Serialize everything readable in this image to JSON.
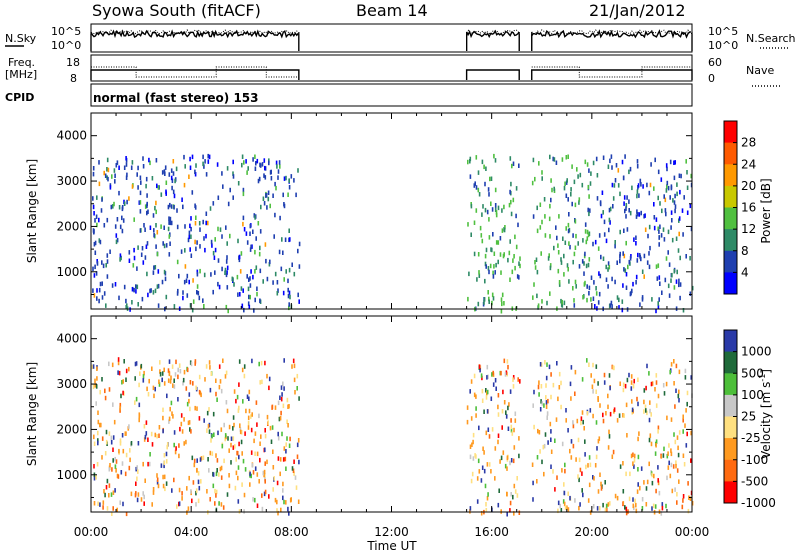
{
  "header": {
    "station": "Syowa South (fitACF)",
    "beam": "Beam 14",
    "date": "21/Jan/2012"
  },
  "panels": {
    "nsky_label": "N.Sky",
    "nsky_ticks": [
      "10^5",
      "10^0"
    ],
    "nsearch_label": "N.Search",
    "nsearch_ticks": [
      "10^5",
      "10^0"
    ],
    "freq_label": "Freq.",
    "freq_unit": "[MHz]",
    "freq_ticks": [
      "18",
      "8"
    ],
    "nave_label": "Nave",
    "nave_ticks": [
      "60",
      "0"
    ],
    "cpid_label": "CPID",
    "cpid_text": "normal (fast stereo) 153"
  },
  "colors": {
    "power": [
      "#0000ff",
      "#1f3fb0",
      "#2e8a66",
      "#50c040",
      "#c8c800",
      "#ff9900",
      "#ff5a00",
      "#ff0000"
    ],
    "velocity": [
      "#2a3aa8",
      "#1f6a3a",
      "#4dbf3a",
      "#c8c8c8",
      "#ffe080",
      "#ff9a20",
      "#ff6a10",
      "#ff0000"
    ]
  },
  "chart_data": [
    {
      "type": "heatmap",
      "name": "power",
      "x_range_hours": [
        0,
        24
      ],
      "x_tick_labels": [
        "00:00",
        "04:00",
        "08:00",
        "12:00",
        "16:00",
        "20:00",
        "00:00"
      ],
      "xlabel": "Time UT",
      "ylabel": "Slant Range [km]",
      "ylim": [
        180,
        4500
      ],
      "y_ticks": [
        1000,
        2000,
        3000,
        4000
      ],
      "colorbar_label": "Power [dB]",
      "colorbar_ticks": [
        "4",
        "8",
        "12",
        "16",
        "20",
        "24",
        "28"
      ],
      "colorbar_range": [
        0,
        32
      ],
      "data_intervals_hours": [
        [
          0,
          8.3
        ],
        [
          15,
          17.1
        ],
        [
          17.6,
          24
        ]
      ],
      "range_extent_km": [
        180,
        3600
      ]
    },
    {
      "type": "heatmap",
      "name": "velocity",
      "x_range_hours": [
        0,
        24
      ],
      "x_tick_labels": [
        "00:00",
        "04:00",
        "08:00",
        "12:00",
        "16:00",
        "20:00",
        "00:00"
      ],
      "xlabel": "Time UT",
      "ylabel": "Slant Range [km]",
      "ylim": [
        180,
        4500
      ],
      "y_ticks": [
        1000,
        2000,
        3000,
        4000
      ],
      "colorbar_label": "Velocity [m s",
      "colorbar_label_sup": "-1",
      "colorbar_label_end": "]",
      "colorbar_ticks": [
        "1000",
        "500",
        "100",
        "25",
        "-25",
        "-100",
        "-500",
        "-1000"
      ],
      "data_intervals_hours": [
        [
          0,
          8.3
        ],
        [
          15,
          17.1
        ],
        [
          17.6,
          24
        ]
      ],
      "range_extent_km": [
        180,
        3600
      ]
    }
  ]
}
